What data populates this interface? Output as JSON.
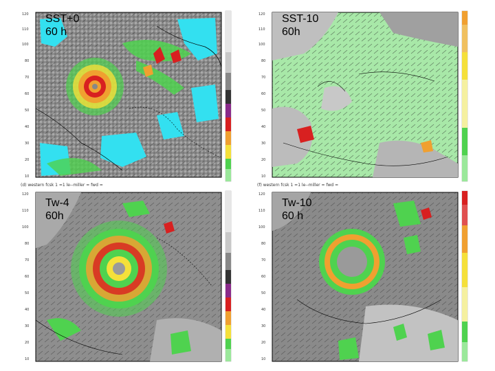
{
  "panels": [
    {
      "label_line1": "SST+0",
      "label_line2": "60 h",
      "theme": "storm-compact",
      "header": ""
    },
    {
      "label_line1": "SST-10",
      "label_line2": "60h",
      "theme": "weak",
      "header": ""
    },
    {
      "label_line1": "Tw-4",
      "label_line2": "60h",
      "theme": "storm-large",
      "header": "(d) western    fcsk   1     =1  le--miller   =    fwd   ="
    },
    {
      "label_line1": "Tw-10",
      "label_line2": "60 h",
      "theme": "storm-ring",
      "header": "(f) western    fcsk   1     =1  le--miller   =    fwd   ="
    }
  ],
  "colors": {
    "cyan": "#33e0f0",
    "green": "#4fd24f",
    "light_green": "#9be89b",
    "orange": "#f0a030",
    "yellow": "#f5e03a",
    "red": "#d82020",
    "gray": "#9a9a9a"
  }
}
